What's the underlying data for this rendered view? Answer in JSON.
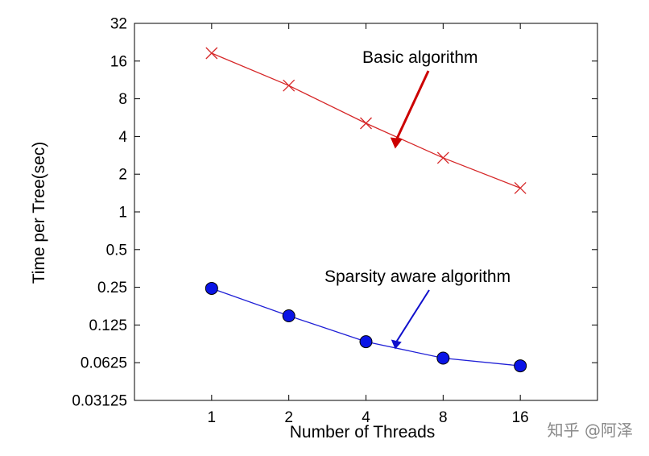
{
  "chart_data": {
    "type": "line",
    "title": "",
    "xlabel": "Number of Threads",
    "ylabel": "Time per Tree(sec)",
    "x_scale": "log2",
    "y_scale": "log2",
    "x": [
      1,
      2,
      4,
      8,
      16
    ],
    "x_ticks": [
      "1",
      "2",
      "4",
      "8",
      "16"
    ],
    "xlim": [
      0.5,
      32
    ],
    "y_ticks": [
      "0.03125",
      "0.0625",
      "0.125",
      "0.25",
      "0.5",
      "1",
      "2",
      "4",
      "8",
      "16",
      "32"
    ],
    "ylim": [
      0.03125,
      32
    ],
    "grid": false,
    "series": [
      {
        "name": "Basic algorithm",
        "color": "#d62728",
        "marker": "x",
        "values": [
          18.5,
          10.2,
          5.1,
          2.7,
          1.55
        ]
      },
      {
        "name": "Sparsity aware algorithm",
        "color": "#1f1fd6",
        "marker": "circle",
        "values": [
          0.245,
          0.148,
          0.092,
          0.068,
          0.059
        ]
      }
    ],
    "annotations": [
      {
        "text": "Basic algorithm",
        "color": "#cc0000",
        "points_to_x": 5.2,
        "points_to_y": 3.2
      },
      {
        "text": "Sparsity aware algorithm",
        "color": "#1010cc",
        "points_to_x": 5.2,
        "points_to_y": 0.085
      }
    ]
  },
  "watermark": "知乎 @阿泽"
}
